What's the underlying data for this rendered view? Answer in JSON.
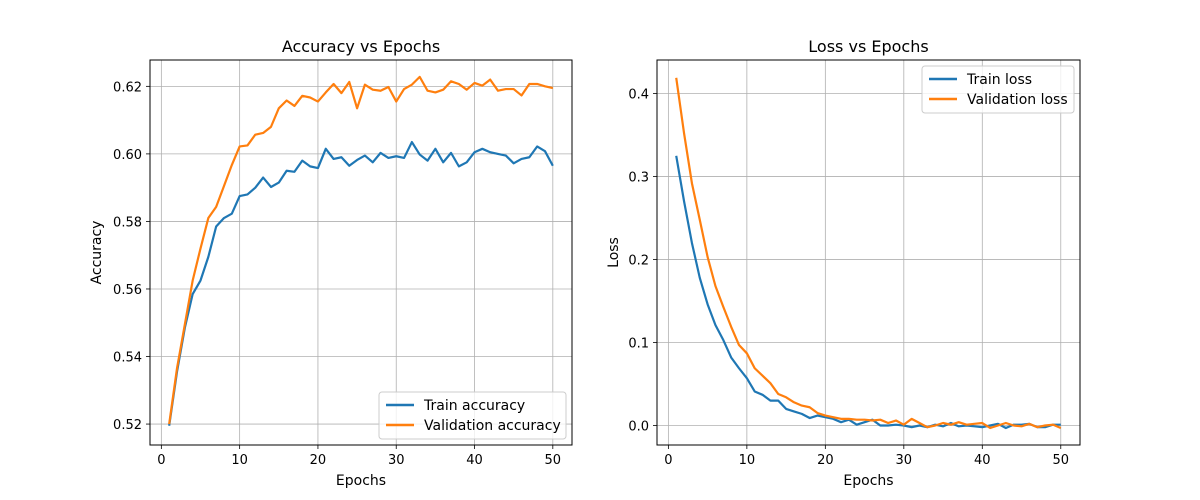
{
  "chart_data": [
    {
      "type": "line",
      "title": "Accuracy vs Epochs",
      "xlabel": "Epochs",
      "ylabel": "Accuracy",
      "xlim": [
        -1.45,
        52.45
      ],
      "ylim": [
        0.5138,
        0.6278
      ],
      "xticks": [
        0,
        10,
        20,
        30,
        40,
        50
      ],
      "yticks": [
        0.52,
        0.54,
        0.56,
        0.58,
        0.6,
        0.62
      ],
      "ytick_labels": [
        "0.52",
        "0.54",
        "0.56",
        "0.58",
        "0.60",
        "0.62"
      ],
      "grid": true,
      "legend_position": "bottom-right",
      "x": [
        1,
        2,
        3,
        4,
        5,
        6,
        7,
        8,
        9,
        10,
        11,
        12,
        13,
        14,
        15,
        16,
        17,
        18,
        19,
        20,
        21,
        22,
        23,
        24,
        25,
        26,
        27,
        28,
        29,
        30,
        31,
        32,
        33,
        34,
        35,
        36,
        37,
        38,
        39,
        40,
        41,
        42,
        43,
        44,
        45,
        46,
        47,
        48,
        49,
        50
      ],
      "series": [
        {
          "name": "Train accuracy",
          "color": "#1f77b4",
          "values": [
            0.5195,
            0.5355,
            0.5485,
            0.5585,
            0.5625,
            0.5695,
            0.5785,
            0.581,
            0.5823,
            0.5875,
            0.588,
            0.59,
            0.593,
            0.5902,
            0.5915,
            0.595,
            0.5947,
            0.598,
            0.5963,
            0.5958,
            0.6015,
            0.5985,
            0.599,
            0.5965,
            0.5982,
            0.5995,
            0.5975,
            0.6003,
            0.5988,
            0.5993,
            0.5988,
            0.6035,
            0.5998,
            0.598,
            0.6015,
            0.5975,
            0.6003,
            0.5963,
            0.5975,
            0.6005,
            0.6015,
            0.6005,
            0.6,
            0.5995,
            0.5972,
            0.5985,
            0.599,
            0.6022,
            0.6008,
            0.5965
          ]
        },
        {
          "name": "Validation accuracy",
          "color": "#ff7f0e",
          "values": [
            0.52,
            0.5365,
            0.5495,
            0.5625,
            0.572,
            0.581,
            0.5843,
            0.5905,
            0.5967,
            0.6022,
            0.6025,
            0.6057,
            0.6062,
            0.608,
            0.6135,
            0.6158,
            0.6142,
            0.6172,
            0.6167,
            0.6155,
            0.6182,
            0.6207,
            0.618,
            0.6213,
            0.6135,
            0.6205,
            0.619,
            0.6187,
            0.6198,
            0.6155,
            0.6192,
            0.6205,
            0.6228,
            0.6187,
            0.6182,
            0.619,
            0.6215,
            0.6207,
            0.619,
            0.621,
            0.6202,
            0.622,
            0.6187,
            0.6192,
            0.6192,
            0.6173,
            0.6207,
            0.6207,
            0.62,
            0.6195
          ]
        }
      ]
    },
    {
      "type": "line",
      "title": "Loss vs Epochs",
      "xlabel": "Epochs",
      "ylabel": "Loss",
      "xlim": [
        -1.45,
        52.45
      ],
      "ylim": [
        -0.0235,
        0.4405
      ],
      "xticks": [
        0,
        10,
        20,
        30,
        40,
        50
      ],
      "yticks": [
        0.0,
        0.1,
        0.2,
        0.3,
        0.4
      ],
      "ytick_labels": [
        "0.0",
        "0.1",
        "0.2",
        "0.3",
        "0.4"
      ],
      "grid": true,
      "legend_position": "top-right",
      "x": [
        1,
        2,
        3,
        4,
        5,
        6,
        7,
        8,
        9,
        10,
        11,
        12,
        13,
        14,
        15,
        16,
        17,
        18,
        19,
        20,
        21,
        22,
        23,
        24,
        25,
        26,
        27,
        28,
        29,
        30,
        31,
        32,
        33,
        34,
        35,
        36,
        37,
        38,
        39,
        40,
        41,
        42,
        43,
        44,
        45,
        46,
        47,
        48,
        49,
        50
      ],
      "series": [
        {
          "name": "Train loss",
          "color": "#1f77b4",
          "values": [
            0.325,
            0.27,
            0.22,
            0.178,
            0.146,
            0.121,
            0.103,
            0.082,
            0.069,
            0.057,
            0.041,
            0.037,
            0.03,
            0.03,
            0.02,
            0.017,
            0.014,
            0.009,
            0.012,
            0.01,
            0.008,
            0.004,
            0.007,
            0.001,
            0.004,
            0.007,
            0.0,
            0.0,
            0.001,
            0.0,
            -0.002,
            0.0,
            -0.002,
            0.001,
            -0.001,
            0.003,
            -0.001,
            0.0,
            -0.001,
            -0.002,
            0.0,
            0.002,
            -0.003,
            0.001,
            0.001,
            0.002,
            -0.002,
            -0.002,
            0.001,
            0.001
          ]
        },
        {
          "name": "Validation loss",
          "color": "#ff7f0e",
          "values": [
            0.419,
            0.352,
            0.292,
            0.248,
            0.203,
            0.168,
            0.143,
            0.119,
            0.097,
            0.087,
            0.069,
            0.06,
            0.051,
            0.038,
            0.034,
            0.028,
            0.024,
            0.022,
            0.015,
            0.012,
            0.01,
            0.008,
            0.008,
            0.007,
            0.007,
            0.006,
            0.007,
            0.003,
            0.006,
            0.001,
            0.008,
            0.003,
            -0.002,
            0.0,
            0.003,
            0.001,
            0.004,
            0.001,
            0.002,
            0.003,
            -0.003,
            0.0,
            0.003,
            0.0,
            -0.001,
            0.002,
            -0.002,
            0.0,
            0.001,
            -0.003
          ]
        }
      ]
    }
  ]
}
